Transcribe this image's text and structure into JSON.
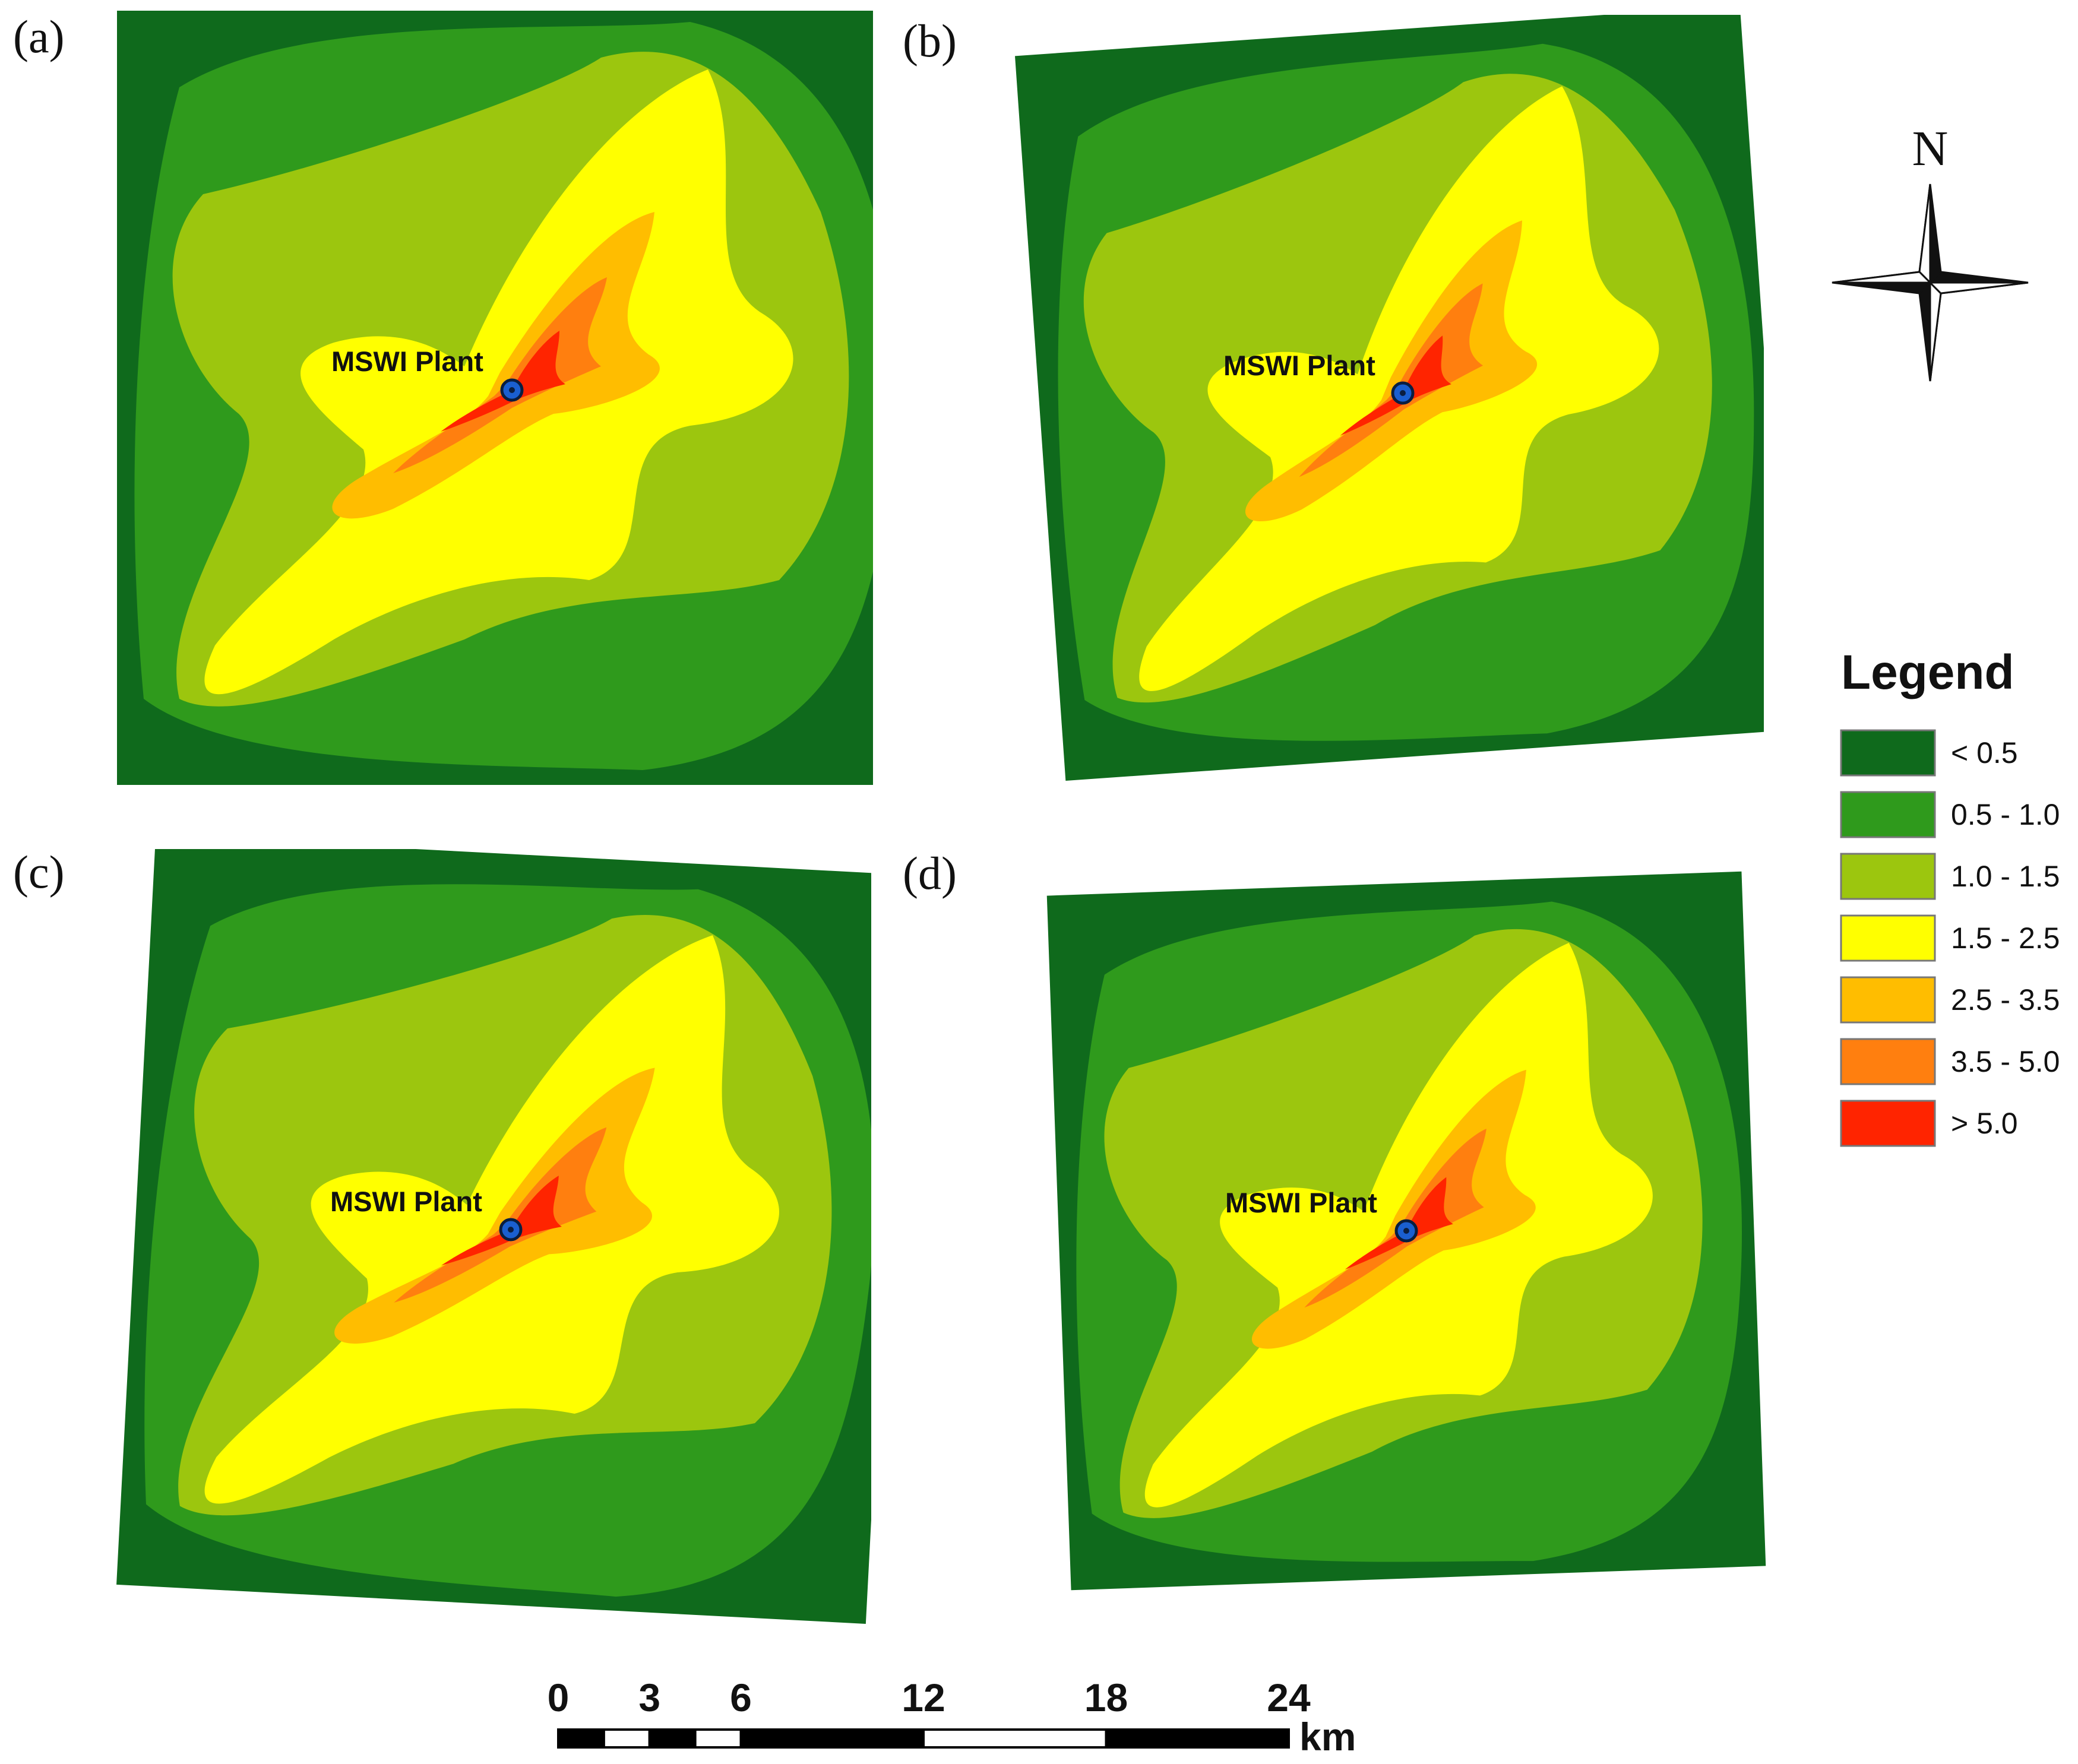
{
  "figure": {
    "panels": [
      {
        "label": "(a)",
        "marker_label": "MSWI Plant"
      },
      {
        "label": "(b)",
        "marker_label": "MSWI Plant"
      },
      {
        "label": "(c)",
        "marker_label": "MSWI Plant"
      },
      {
        "label": "(d)",
        "marker_label": "MSWI Plant"
      }
    ],
    "legend": {
      "title": "Legend",
      "classes": [
        {
          "label": "< 0.5",
          "color": "#0f6a1c"
        },
        {
          "label": "0.5 - 1.0",
          "color": "#2f9a1c"
        },
        {
          "label": "1.0 - 1.5",
          "color": "#9cc60e"
        },
        {
          "label": "1.5 - 2.5",
          "color": "#ffff00"
        },
        {
          "label": "2.5 - 3.5",
          "color": "#ffbd00"
        },
        {
          "label": "3.5 - 5.0",
          "color": "#ff7f0f"
        },
        {
          "label": "> 5.0",
          "color": "#ff2400"
        }
      ]
    },
    "north_arrow": {
      "label": "N"
    },
    "scale_bar": {
      "ticks": [
        "0",
        "3",
        "6",
        "12",
        "18",
        "24"
      ],
      "tick_values_km": [
        0,
        3,
        6,
        12,
        18,
        24
      ],
      "unit": "km"
    },
    "plant_marker": {
      "fill": "#1a5fd0",
      "ring": "#0a1e40"
    }
  }
}
